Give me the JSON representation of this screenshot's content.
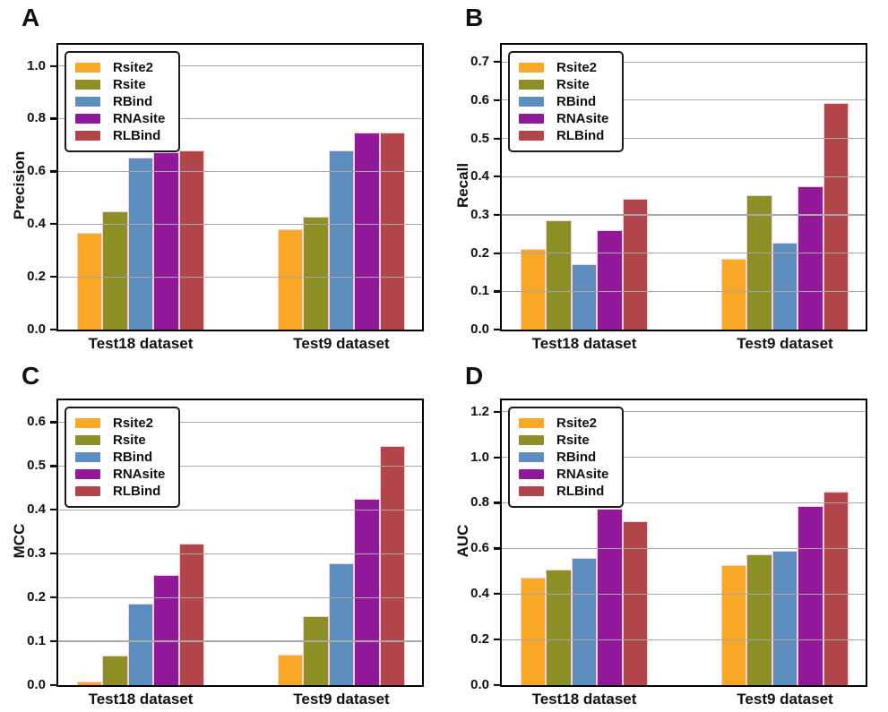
{
  "chart_data": [
    {
      "type": "bar",
      "panel_label": "A",
      "ylabel": "Precision",
      "categories": [
        "Test18 dataset",
        "Test9 dataset"
      ],
      "series": [
        {
          "name": "Rsite2",
          "color": "#F9A825",
          "values": [
            0.367,
            0.379
          ]
        },
        {
          "name": "Rsite",
          "color": "#8C8F23",
          "values": [
            0.447,
            0.428
          ]
        },
        {
          "name": "RBind",
          "color": "#5B8DBE",
          "values": [
            0.653,
            0.679
          ]
        },
        {
          "name": "RNAsite",
          "color": "#92189A",
          "values": [
            0.671,
            0.747
          ]
        },
        {
          "name": "RLBind",
          "color": "#B2454A",
          "values": [
            0.679,
            0.747
          ]
        }
      ],
      "ylim": [
        0,
        1.08
      ],
      "yticks": [
        0.0,
        0.2,
        0.4,
        0.6,
        0.8,
        1.0
      ],
      "ytick_labels": [
        "0.0",
        "0.2",
        "0.4",
        "0.6",
        "0.8",
        "1.0"
      ],
      "grid": true,
      "legend_position": "upper left"
    },
    {
      "type": "bar",
      "panel_label": "B",
      "ylabel": "Recall",
      "categories": [
        "Test18 dataset",
        "Test9 dataset"
      ],
      "series": [
        {
          "name": "Rsite2",
          "color": "#F9A825",
          "values": [
            0.212,
            0.186
          ]
        },
        {
          "name": "Rsite",
          "color": "#8C8F23",
          "values": [
            0.287,
            0.351
          ]
        },
        {
          "name": "RBind",
          "color": "#5B8DBE",
          "values": [
            0.17,
            0.228
          ]
        },
        {
          "name": "RNAsite",
          "color": "#92189A",
          "values": [
            0.259,
            0.375
          ]
        },
        {
          "name": "RLBind",
          "color": "#B2454A",
          "values": [
            0.343,
            0.593
          ]
        }
      ],
      "ylim": [
        0,
        0.745
      ],
      "yticks": [
        0.0,
        0.1,
        0.2,
        0.3,
        0.4,
        0.5,
        0.6,
        0.7
      ],
      "ytick_labels": [
        "0.0",
        "0.1",
        "0.2",
        "0.3",
        "0.4",
        "0.5",
        "0.6",
        "0.7"
      ],
      "grid": true,
      "legend_position": "upper left"
    },
    {
      "type": "bar",
      "panel_label": "C",
      "ylabel": "MCC",
      "categories": [
        "Test18 dataset",
        "Test9 dataset"
      ],
      "series": [
        {
          "name": "Rsite2",
          "color": "#F9A825",
          "values": [
            0.008,
            0.07
          ]
        },
        {
          "name": "Rsite",
          "color": "#8C8F23",
          "values": [
            0.068,
            0.157
          ]
        },
        {
          "name": "RBind",
          "color": "#5B8DBE",
          "values": [
            0.186,
            0.277
          ]
        },
        {
          "name": "RNAsite",
          "color": "#92189A",
          "values": [
            0.252,
            0.426
          ]
        },
        {
          "name": "RLBind",
          "color": "#B2454A",
          "values": [
            0.322,
            0.546
          ]
        }
      ],
      "ylim": [
        0,
        0.65
      ],
      "yticks": [
        0.0,
        0.1,
        0.2,
        0.3,
        0.4,
        0.5,
        0.6
      ],
      "ytick_labels": [
        "0.0",
        "0.1",
        "0.2",
        "0.3",
        "0.4",
        "0.5",
        "0.6"
      ],
      "grid": true,
      "legend_position": "upper left"
    },
    {
      "type": "bar",
      "panel_label": "D",
      "ylabel": "AUC",
      "categories": [
        "Test18 dataset",
        "Test9 dataset"
      ],
      "series": [
        {
          "name": "Rsite2",
          "color": "#F9A825",
          "values": [
            0.471,
            0.525
          ]
        },
        {
          "name": "Rsite",
          "color": "#8C8F23",
          "values": [
            0.508,
            0.573
          ]
        },
        {
          "name": "RBind",
          "color": "#5B8DBE",
          "values": [
            0.558,
            0.591
          ]
        },
        {
          "name": "RNAsite",
          "color": "#92189A",
          "values": [
            0.775,
            0.788
          ]
        },
        {
          "name": "RLBind",
          "color": "#B2454A",
          "values": [
            0.72,
            0.849
          ]
        }
      ],
      "ylim": [
        0,
        1.25
      ],
      "yticks": [
        0.0,
        0.2,
        0.4,
        0.6,
        0.8,
        1.0,
        1.2
      ],
      "ytick_labels": [
        "0.0",
        "0.2",
        "0.4",
        "0.6",
        "0.8",
        "1.0",
        "1.2"
      ],
      "grid": true,
      "legend_position": "upper left"
    }
  ],
  "style": {
    "gridline_color": "#a8a8a8",
    "bar_edge_color": "#f8ced8",
    "axis_color": "#000000",
    "text_color": "#111111"
  }
}
